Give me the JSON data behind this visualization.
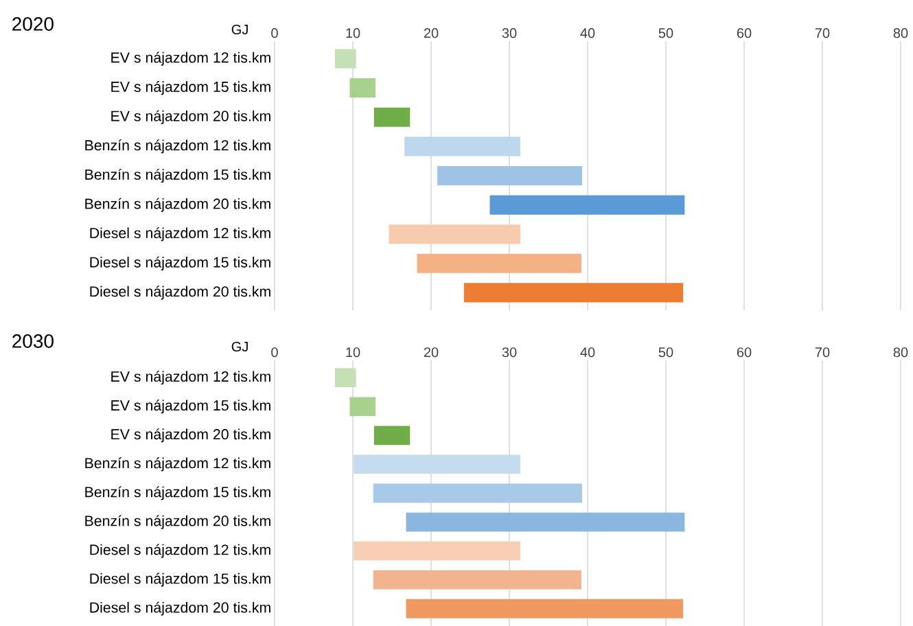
{
  "chart_data": [
    {
      "type": "bar",
      "orientation": "horizontal",
      "title": "2020",
      "xlabel": "GJ",
      "categories": [
        "EV s nájazdom 12 tis.km",
        "EV s nájazdom 15 tis.km",
        "EV s nájazdom 20 tis.km",
        "Benzín s nájazdom 12 tis.km",
        "Benzín s nájazdom 15 tis.km",
        "Benzín s nájazdom 20 tis.km",
        "Diesel s nájazdom 12 tis.km",
        "Diesel s nájazdom 15 tis.km",
        "Diesel s nájazdom 20 tis.km"
      ],
      "base": [
        7.7,
        9.6,
        12.7,
        16.6,
        20.8,
        27.5,
        14.6,
        18.2,
        24.2
      ],
      "values": [
        2.7,
        3.3,
        4.6,
        14.8,
        18.5,
        24.9,
        16.8,
        21.0,
        28.0
      ],
      "colors": [
        "#c5e0b4",
        "#a9d18e",
        "#70ad47",
        "#bdd7ee",
        "#9dc3e6",
        "#5b9bd5",
        "#f8cbad",
        "#f4b183",
        "#ed7d31"
      ],
      "xlim": [
        0,
        80
      ],
      "xticks": [
        0,
        10,
        20,
        30,
        40,
        50,
        60,
        70,
        80
      ],
      "grid": "x"
    },
    {
      "type": "bar",
      "orientation": "horizontal",
      "title": "2030",
      "xlabel": "GJ",
      "categories": [
        "EV s nájazdom 12 tis.km",
        "EV s nájazdom 15 tis.km",
        "EV s nájazdom 20 tis.km",
        "Benzín s nájazdom 12 tis.km",
        "Benzín s nájazdom 15 tis.km",
        "Benzín s nájazdom 20 tis.km",
        "Diesel s nájazdom 12 tis.km",
        "Diesel s nájazdom 15 tis.km",
        "Diesel s nájazdom 20 tis.km"
      ],
      "base": [
        7.7,
        9.6,
        12.7,
        10.1,
        12.6,
        16.8,
        10.1,
        12.6,
        16.8
      ],
      "values": [
        2.7,
        3.3,
        4.6,
        21.3,
        26.7,
        35.6,
        21.3,
        26.6,
        35.4
      ],
      "colors": [
        "#c5e0b4",
        "#a9d18e",
        "#70ad47",
        "#c5dbf0",
        "#a9c9e8",
        "#8ab6e0",
        "#f7cfb5",
        "#f2b48e",
        "#ef985f"
      ],
      "xlim": [
        0,
        80
      ],
      "xticks": [
        0,
        10,
        20,
        30,
        40,
        50,
        60,
        70,
        80
      ],
      "grid": "x"
    }
  ]
}
